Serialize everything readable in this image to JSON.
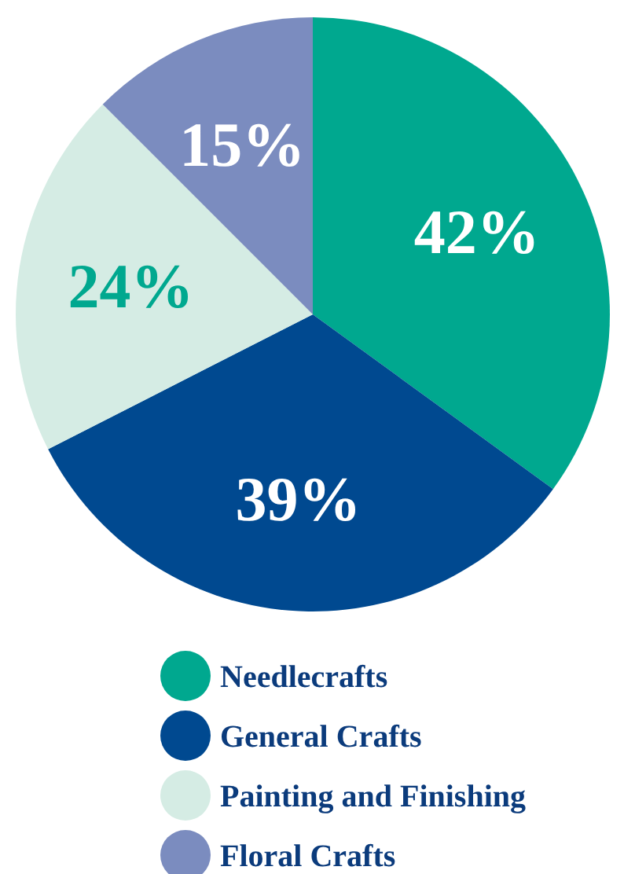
{
  "chart_data": {
    "type": "pie",
    "categories": [
      "Needlecrafts",
      "General Crafts",
      "Painting and Finishing",
      "Floral Crafts"
    ],
    "values": [
      42,
      39,
      24,
      15
    ],
    "value_labels": [
      "42%",
      "39%",
      "24%",
      "15%"
    ],
    "colors": [
      "#00a88f",
      "#004990",
      "#d5ece4",
      "#7b8cbf"
    ],
    "legend": "bottom"
  }
}
